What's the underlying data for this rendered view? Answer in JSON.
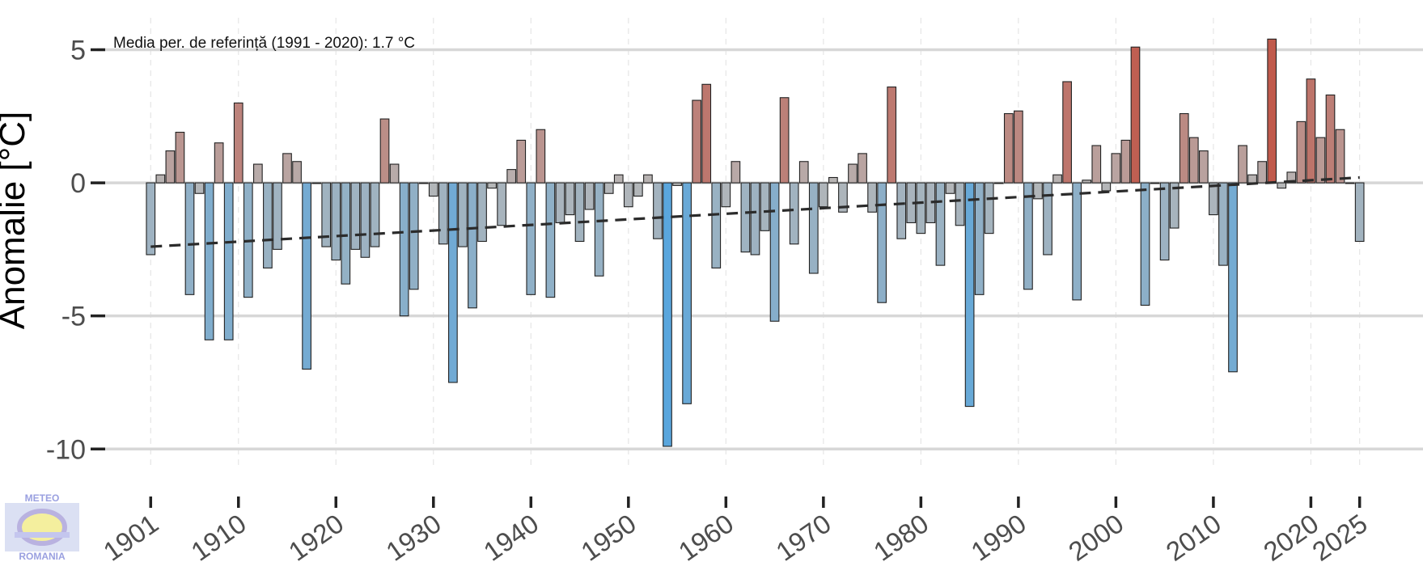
{
  "chart_data": {
    "type": "bar",
    "annotation": "Media per. de referință (1991 - 2020): 1.7 °C",
    "ylabel": "Anomalie [°C]",
    "xlabel": "",
    "ylim": [
      -10.6,
      6.2
    ],
    "xlim": [
      1895.5,
      2031.5
    ],
    "yticks": [
      5,
      0,
      -5,
      -10
    ],
    "xticks": [
      1901,
      1910,
      1920,
      1930,
      1940,
      1950,
      1960,
      1970,
      1980,
      1990,
      2000,
      2010,
      2020,
      2025
    ],
    "grid": true,
    "x_start": 1901,
    "values": [
      -2.7,
      0.3,
      1.2,
      1.9,
      -4.2,
      -0.4,
      -5.9,
      1.5,
      -5.9,
      3.0,
      -4.3,
      0.7,
      -3.2,
      -2.5,
      1.1,
      0.8,
      -7.0,
      0.0,
      -2.4,
      -2.9,
      -3.8,
      -2.5,
      -2.8,
      -2.4,
      2.4,
      0.7,
      -5.0,
      -4.0,
      0.0,
      -0.5,
      -2.3,
      -7.5,
      -2.4,
      -4.7,
      -2.2,
      -0.2,
      -1.6,
      0.5,
      1.6,
      -4.2,
      2.0,
      -4.3,
      -1.5,
      -1.2,
      -2.2,
      -1.0,
      -3.5,
      -0.4,
      0.3,
      -0.9,
      -0.5,
      0.3,
      -2.1,
      -9.9,
      -0.1,
      -8.3,
      3.1,
      3.7,
      -3.2,
      -0.9,
      0.8,
      -2.6,
      -2.7,
      -1.8,
      -5.2,
      3.2,
      -2.3,
      0.8,
      -3.4,
      -0.9,
      0.2,
      -1.1,
      0.7,
      1.1,
      -1.1,
      -4.5,
      3.6,
      -2.1,
      -1.5,
      -1.9,
      -1.5,
      -3.1,
      -0.4,
      -1.6,
      -8.4,
      -4.2,
      -1.9,
      0.0,
      2.6,
      2.7,
      -4.0,
      -0.6,
      -2.7,
      0.3,
      3.8,
      -4.4,
      0.1,
      1.4,
      -0.3,
      1.1,
      1.6,
      5.1,
      -4.6,
      0.0,
      -2.9,
      -1.7,
      2.6,
      1.7,
      1.2,
      -1.2,
      -3.1,
      -7.1,
      1.4,
      0.3,
      0.8,
      5.4,
      -0.2,
      0.4,
      2.3,
      3.9,
      1.7,
      3.3,
      2.0,
      0.0,
      -2.2
    ],
    "trend": {
      "style": "dashed",
      "from": [
        1901,
        -2.4
      ],
      "to": [
        2025,
        0.2
      ]
    },
    "colors": {
      "neutral": "#b7b7b7",
      "warm": "#c0584a",
      "cold": "#59a6dd",
      "bar_outline": "#222222",
      "grid_major": "#d7d7d7",
      "grid_minor": "#e6e6e6",
      "trend": "#2b2b2b",
      "tick_text": "#4d4d4d"
    }
  },
  "logo": {
    "top_text": "METEO",
    "bottom_text": "ROMANIA"
  }
}
